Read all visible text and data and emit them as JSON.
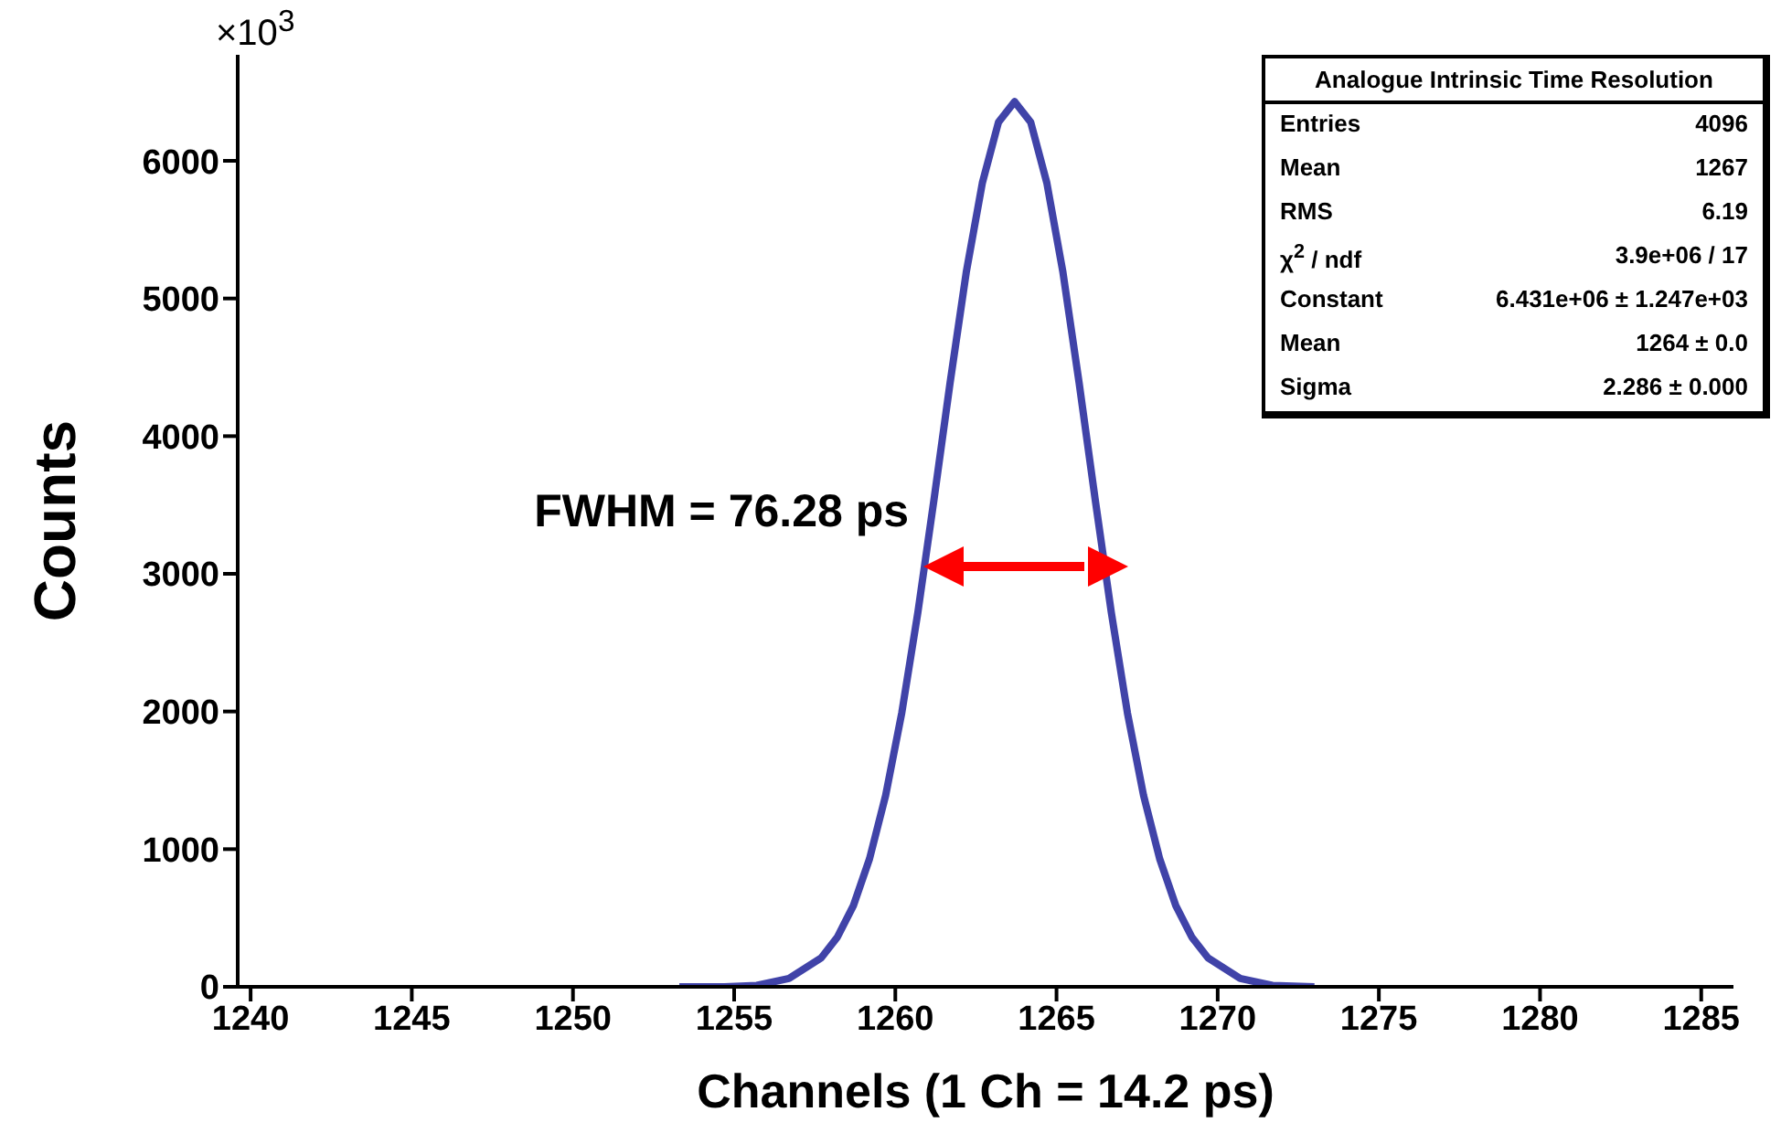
{
  "chart_data": {
    "type": "line",
    "title": "Analogue Intrinsic Time Resolution",
    "xlabel": "Channels (1 Ch = 14.2 ps)",
    "ylabel": "Counts",
    "x": [
      1253.3,
      1254.7,
      1255.7,
      1256.7,
      1257.7,
      1258.2,
      1258.7,
      1259.2,
      1259.7,
      1260.2,
      1260.7,
      1261.2,
      1261.7,
      1262.2,
      1262.7,
      1263.2,
      1263.7,
      1264.2,
      1264.7,
      1265.2,
      1265.7,
      1266.2,
      1266.7,
      1267.2,
      1267.7,
      1268.2,
      1268.7,
      1269.2,
      1269.7,
      1270.7,
      1271.7,
      1273.0
    ],
    "series": [
      {
        "color": "#2b2f9e",
        "values": [
          0,
          0,
          10,
          60,
          210,
          360,
          590,
          930,
          1390,
          1990,
          2720,
          3540,
          4390,
          5190,
          5840,
          6280,
          6430,
          6280,
          5840,
          5190,
          4390,
          3540,
          2720,
          1990,
          1390,
          930,
          590,
          360,
          210,
          60,
          10,
          0
        ]
      }
    ],
    "xlim": [
      1239.6,
      1286
    ],
    "xticks": [
      1240,
      1245,
      1250,
      1255,
      1260,
      1265,
      1270,
      1275,
      1280,
      1285
    ],
    "ylim": [
      0,
      6770
    ],
    "yticks": [
      0,
      1000,
      2000,
      3000,
      4000,
      5000,
      6000
    ],
    "grid": false,
    "legend": false,
    "marker": "none",
    "line_style": "solid",
    "annotations": [
      "FWHM = 76.28 ps",
      "×10$^{3}$",
      "Entries",
      "4096",
      "Mean",
      "1267",
      "RMS",
      "6.19",
      "χ$^{2}$ / ndf",
      "3.9e+06 / 17",
      "Constant",
      "6.431e+06 ± 1.247e+03",
      "Mean",
      "1264 ± 0.0",
      "Sigma",
      "2.286 ± 0.000"
    ]
  }
}
